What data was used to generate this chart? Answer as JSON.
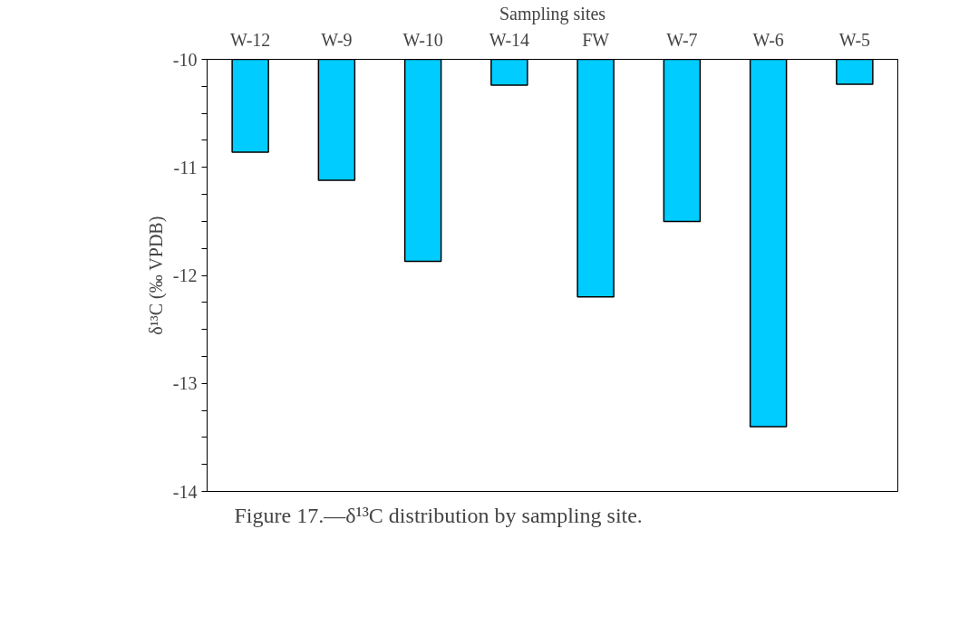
{
  "chart_data": {
    "type": "bar",
    "xlabel": "Sampling sites",
    "ylabel": "δ¹³C (‰ VPDB)",
    "categories": [
      "W-12",
      "W-9",
      "W-10",
      "W-14",
      "FW",
      "W-7",
      "W-6",
      "W-5"
    ],
    "values": [
      -10.86,
      -11.12,
      -11.87,
      -10.24,
      -12.2,
      -11.5,
      -13.4,
      -10.23
    ],
    "color": "#00ccff",
    "ylim": [
      -14,
      -10
    ],
    "yticks": [
      -14,
      {
        "value": -13.75,
        "label": null
      },
      {
        "value": -13.5,
        "label": null
      },
      {
        "value": -13.25,
        "label": null
      },
      -13,
      {
        "value": -12.75,
        "label": null
      },
      {
        "value": -12.5,
        "label": null
      },
      {
        "value": -12.25,
        "label": null
      },
      -12,
      {
        "value": -11.75,
        "label": null
      },
      {
        "value": -11.5,
        "label": null
      },
      {
        "value": -11.25,
        "label": null
      },
      -11,
      {
        "value": -10.75,
        "label": null
      },
      {
        "value": -10.5,
        "label": null
      },
      {
        "value": -10.25,
        "label": null
      },
      -10
    ],
    "grid": false,
    "annotations": [
      "Figure 17.—δ¹³C distribution by sampling site."
    ]
  }
}
